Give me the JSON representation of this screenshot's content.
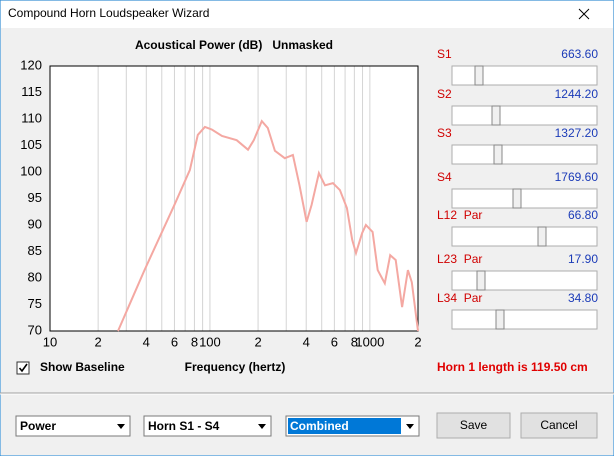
{
  "window": {
    "title": "Compound Horn Loudspeaker Wizard"
  },
  "chart_data": {
    "type": "line",
    "title": "Acoustical Power (dB)   Unmasked",
    "x_label": "Frequency (hertz)",
    "x": [
      26.6,
      39,
      60,
      75,
      84,
      93,
      103,
      119,
      147,
      173,
      188,
      211,
      230,
      255,
      294,
      330,
      363,
      402,
      432,
      480,
      524,
      587,
      650,
      719,
      776,
      819,
      895,
      945,
      1041,
      1120,
      1240,
      1340,
      1450,
      1590,
      1730,
      1830,
      2000
    ],
    "series": [
      {
        "color": "#f4a8a2",
        "values": [
          70,
          81.5,
          93.8,
          100.4,
          107,
          108.5,
          108,
          106.8,
          106,
          104.2,
          106,
          109.6,
          108.3,
          104,
          102.6,
          103.2,
          97.5,
          90.6,
          93.8,
          99.8,
          97.5,
          97.9,
          96.6,
          93.2,
          87.2,
          84.7,
          88.5,
          90,
          88.7,
          81.5,
          79,
          84.3,
          83.4,
          74.5,
          81.5,
          79.2,
          70
        ]
      }
    ],
    "xlim": [
      10,
      2000
    ],
    "ylim": [
      70,
      120
    ],
    "x_log": true,
    "xticks": [
      10,
      {
        "value": 20,
        "label": "2"
      },
      {
        "value": 40,
        "label": "4"
      },
      {
        "value": 60,
        "label": "6"
      },
      {
        "value": 80,
        "label": "8"
      },
      100,
      {
        "value": 200,
        "label": "2"
      },
      {
        "value": 400,
        "label": "4"
      },
      {
        "value": 600,
        "label": "6"
      },
      {
        "value": 800,
        "label": "8"
      },
      1000,
      {
        "value": 2000,
        "label": "2"
      }
    ],
    "x_minor_ticks": [
      30,
      50,
      70,
      90,
      300,
      500,
      700,
      900
    ],
    "yticks": [
      70,
      75,
      80,
      85,
      90,
      95,
      100,
      105,
      110,
      115,
      120
    ],
    "grid": true
  },
  "sliders": [
    {
      "label": "S1",
      "value": "663.60"
    },
    {
      "label": "S2",
      "value": "1244.20"
    },
    {
      "label": "S3",
      "value": "1327.20"
    },
    {
      "label": "S4",
      "value": "1769.60"
    },
    {
      "label": "L12  Par",
      "value": "66.80"
    },
    {
      "label": "L23  Par",
      "value": "17.90"
    },
    {
      "label": "L34  Par",
      "value": "34.80"
    }
  ],
  "show_baseline": {
    "label": "Show Baseline",
    "checked": true
  },
  "horn_length": "Horn 1 length is 119.50 cm",
  "dropdowns": [
    "Power",
    "Horn S1 - S4",
    "Combined"
  ],
  "buttons": [
    "Save",
    "Cancel"
  ]
}
